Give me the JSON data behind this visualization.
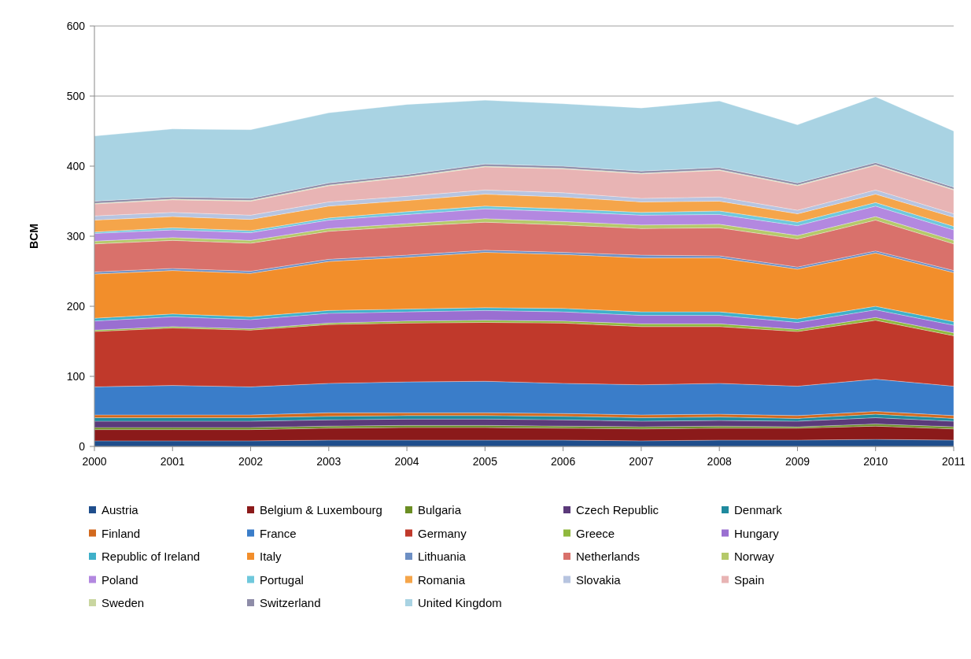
{
  "chart_data": {
    "type": "area",
    "stacked": true,
    "ylabel": "BCM",
    "categories": [
      "2000",
      "2001",
      "2002",
      "2003",
      "2004",
      "2005",
      "2006",
      "2007",
      "2008",
      "2009",
      "2010",
      "2011"
    ],
    "ylim": [
      0,
      600
    ],
    "yticks": [
      0,
      100,
      200,
      300,
      400,
      500,
      600
    ],
    "grid": "y",
    "legend": "bottom",
    "series": [
      {
        "name": "Austria",
        "color": "#1f4e8c",
        "values": [
          8,
          8,
          8,
          9,
          9,
          9,
          9,
          8,
          9,
          9,
          10,
          9
        ]
      },
      {
        "name": "Belgium & Luxembourg",
        "color": "#8b1a1a",
        "values": [
          16,
          16,
          16,
          17,
          18,
          18,
          17,
          17,
          17,
          17,
          19,
          16
        ]
      },
      {
        "name": "Bulgaria",
        "color": "#6b8e23",
        "values": [
          3,
          3,
          3,
          3,
          3,
          3,
          3,
          3,
          3,
          2,
          3,
          3
        ]
      },
      {
        "name": "Czech Republic",
        "color": "#5b3a7a",
        "values": [
          9,
          9,
          9,
          9,
          9,
          9,
          9,
          8,
          8,
          8,
          9,
          8
        ]
      },
      {
        "name": "Denmark",
        "color": "#1f8a9e",
        "values": [
          5,
          5,
          5,
          5,
          5,
          5,
          5,
          5,
          5,
          4,
          5,
          4
        ]
      },
      {
        "name": "Finland",
        "color": "#d2691e",
        "values": [
          4,
          4,
          4,
          5,
          4,
          4,
          4,
          4,
          4,
          4,
          4,
          4
        ]
      },
      {
        "name": "France",
        "color": "#3a7dc9",
        "values": [
          40,
          42,
          40,
          42,
          44,
          45,
          43,
          43,
          44,
          42,
          46,
          42
        ]
      },
      {
        "name": "Germany",
        "color": "#c0392b",
        "values": [
          79,
          82,
          81,
          84,
          84,
          84,
          86,
          83,
          81,
          78,
          84,
          72
        ]
      },
      {
        "name": "Greece",
        "color": "#8fb83d",
        "values": [
          2,
          2,
          2,
          2,
          3,
          3,
          3,
          4,
          4,
          3,
          4,
          4
        ]
      },
      {
        "name": "Hungary",
        "color": "#9a6fd1",
        "values": [
          13,
          14,
          13,
          14,
          13,
          14,
          13,
          12,
          12,
          10,
          11,
          11
        ]
      },
      {
        "name": "Republic of Ireland",
        "color": "#3fb0c9",
        "values": [
          4,
          4,
          4,
          4,
          4,
          4,
          5,
          5,
          5,
          5,
          5,
          5
        ]
      },
      {
        "name": "Italy",
        "color": "#f28e2b",
        "values": [
          63,
          62,
          62,
          70,
          74,
          79,
          77,
          77,
          77,
          71,
          76,
          70
        ]
      },
      {
        "name": "Lithuania",
        "color": "#6d8fc4",
        "values": [
          3,
          3,
          3,
          3,
          3,
          3,
          3,
          4,
          3,
          3,
          3,
          3
        ]
      },
      {
        "name": "Netherlands",
        "color": "#d9716b",
        "values": [
          40,
          40,
          40,
          40,
          41,
          40,
          39,
          38,
          40,
          40,
          44,
          38
        ]
      },
      {
        "name": "Norway",
        "color": "#b5c96a",
        "values": [
          4,
          4,
          4,
          4,
          4,
          5,
          5,
          5,
          5,
          5,
          5,
          5
        ]
      },
      {
        "name": "Poland",
        "color": "#b388e0",
        "values": [
          11,
          11,
          11,
          12,
          13,
          14,
          14,
          14,
          14,
          14,
          15,
          15
        ]
      },
      {
        "name": "Portugal",
        "color": "#6fc8dc",
        "values": [
          2,
          3,
          3,
          3,
          4,
          4,
          4,
          4,
          5,
          5,
          5,
          5
        ]
      },
      {
        "name": "Romania",
        "color": "#f5a54a",
        "values": [
          17,
          16,
          16,
          17,
          16,
          17,
          17,
          15,
          14,
          12,
          12,
          13
        ]
      },
      {
        "name": "Slovakia",
        "color": "#b7c4e0",
        "values": [
          6,
          6,
          6,
          6,
          6,
          6,
          6,
          5,
          6,
          5,
          6,
          5
        ]
      },
      {
        "name": "Spain",
        "color": "#e8b4b4",
        "values": [
          17,
          18,
          20,
          23,
          27,
          33,
          34,
          35,
          38,
          35,
          35,
          34
        ]
      },
      {
        "name": "Sweden",
        "color": "#c9d6a0",
        "values": [
          1,
          1,
          1,
          1,
          1,
          1,
          1,
          1,
          1,
          1,
          1,
          1
        ]
      },
      {
        "name": "Switzerland",
        "color": "#8e8ca8",
        "values": [
          3,
          3,
          3,
          3,
          3,
          3,
          3,
          3,
          3,
          3,
          3,
          3
        ]
      },
      {
        "name": "United Kingdom",
        "color": "#a9d3e3",
        "values": [
          93,
          97,
          98,
          100,
          100,
          91,
          89,
          90,
          95,
          83,
          94,
          80
        ]
      }
    ]
  }
}
